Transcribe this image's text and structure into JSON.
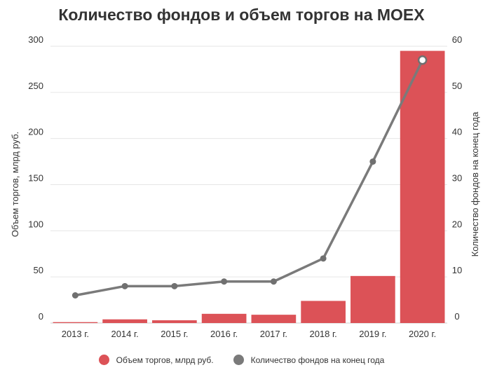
{
  "chart_data": {
    "type": "bar+line",
    "title": "Количество фондов и объем торгов на MOEX",
    "categories": [
      "2013 г.",
      "2014 г.",
      "2015 г.",
      "2016 г.",
      "2017 г.",
      "2018 г.",
      "2019 г.",
      "2020 г."
    ],
    "series": [
      {
        "name": "Объем торгов, млрд руб.",
        "type": "bar",
        "axis": "left",
        "color": "#dc5257",
        "values": [
          1,
          4,
          3,
          10,
          9,
          24,
          51,
          295
        ]
      },
      {
        "name": "Количество фондов на конец года",
        "type": "line",
        "axis": "right",
        "color": "#7a7a7a",
        "values": [
          6,
          8,
          8,
          9,
          9,
          14,
          35,
          57
        ]
      }
    ],
    "ylabel": "Объем торгов, млрд руб.",
    "ylabel_right": "Количество фондов на конец года",
    "ylim": [
      0,
      300
    ],
    "ylim_right": [
      0,
      60
    ],
    "yticks": [
      "0",
      "50",
      "100",
      "150",
      "200",
      "250",
      "300"
    ],
    "yticks_right": [
      "0",
      "10",
      "20",
      "30",
      "40",
      "50",
      "60"
    ],
    "grid": true,
    "legend_position": "bottom"
  }
}
